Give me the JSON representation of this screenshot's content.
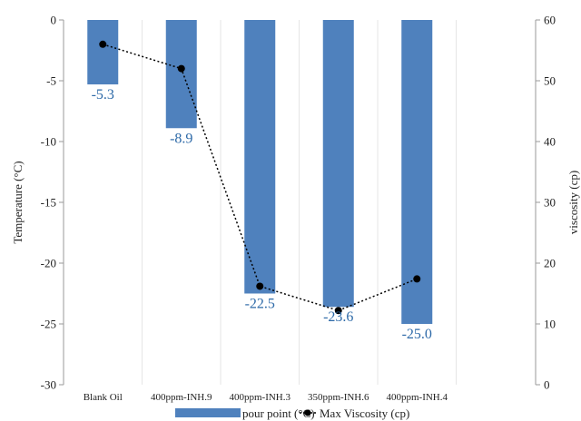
{
  "chart_data": {
    "type": "bar",
    "categories": [
      "Blank Oil",
      "400ppm-INH.9",
      "400ppm-INH.3",
      "350ppm-INH.6",
      "400ppm-INH.4"
    ],
    "series": [
      {
        "name": "pour point (°C)",
        "type": "bar",
        "axis": "left",
        "values": [
          -5.3,
          -8.9,
          -22.5,
          -23.6,
          -25.0
        ],
        "data_labels": [
          "-5.3",
          "-8.9",
          "-22.5",
          "-23.6",
          "-25.0"
        ],
        "color": "#4f81bd"
      },
      {
        "name": "Max Viscosity (cp)",
        "type": "line",
        "axis": "right",
        "values": [
          56,
          52,
          16.2,
          12.2,
          17.4
        ],
        "color": "#000000",
        "line_style": "dotted",
        "marker": "circle"
      }
    ],
    "ylabel": "Temperature (°C)",
    "ylim": [
      -30,
      0
    ],
    "yticks": [
      "0",
      "-5",
      "-10",
      "-15",
      "-20",
      "-25",
      "-30"
    ],
    "y2label": "viscosity (cp)",
    "y2lim": [
      0,
      60
    ],
    "y2ticks": [
      "60",
      "50",
      "40",
      "30",
      "20",
      "10",
      "0"
    ],
    "grid": "vertical",
    "legend_position": "bottom",
    "data_label_color": "#2e6aa8"
  }
}
